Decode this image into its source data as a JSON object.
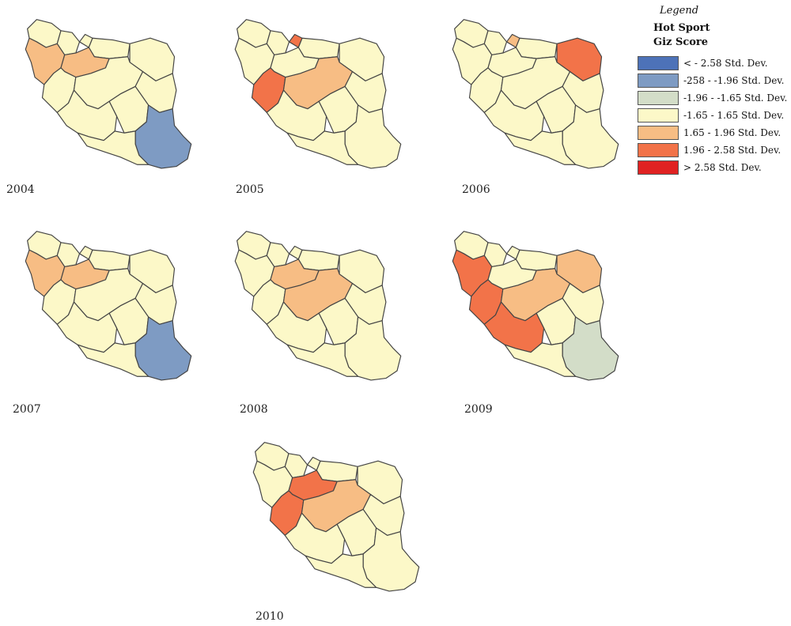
{
  "colors": {
    "neutral": "#fcf8c8",
    "blue": "#7e9bc3",
    "grey_green": "#d3ddc8",
    "light_orange": "#f7bd84",
    "orange": "#f27349"
  },
  "legend": {
    "title": "Legend",
    "heading_line1": "Hot Sport",
    "heading_line2": "Giz Score",
    "items": [
      {
        "label": "< - 2.58 Std. Dev.",
        "color": "#4d72b8"
      },
      {
        "label": "-258 - -1.96 Std. Dev.",
        "color": "#7e9bc3"
      },
      {
        "label": "-1.96 - -1.65 Std. Dev.",
        "color": "#d3ddc8"
      },
      {
        "label": "-1.65 - 1.65 Std. Dev.",
        "color": "#fcf8c8"
      },
      {
        "label": "1.65 - 1.96 Std. Dev.",
        "color": "#f7bd84"
      },
      {
        "label": "1.96 - 2.58 Std. Dev.",
        "color": "#f27349"
      },
      {
        "label": "> 2.58 Std. Dev.",
        "color": "#e02222"
      }
    ]
  },
  "maps": [
    {
      "year": "2004",
      "highlights": {
        "west": "light_orange",
        "center_north": "light_orange",
        "southeast": "blue"
      }
    },
    {
      "year": "2005",
      "highlights": {
        "north_small": "orange",
        "center_west": "orange",
        "center": "light_orange"
      }
    },
    {
      "year": "2006",
      "highlights": {
        "northeast": "orange",
        "north_small": "light_orange"
      }
    },
    {
      "year": "2007",
      "highlights": {
        "west": "light_orange",
        "center_north": "light_orange",
        "southeast": "blue"
      }
    },
    {
      "year": "2008",
      "highlights": {
        "center_north": "light_orange",
        "center": "light_orange"
      }
    },
    {
      "year": "2009",
      "highlights": {
        "west": "orange",
        "center_west": "orange",
        "south": "orange",
        "center": "light_orange",
        "northeast": "light_orange",
        "southeast": "grey_green"
      }
    },
    {
      "year": "2010",
      "highlights": {
        "center_north": "orange",
        "center_west": "orange",
        "center": "light_orange"
      }
    }
  ]
}
